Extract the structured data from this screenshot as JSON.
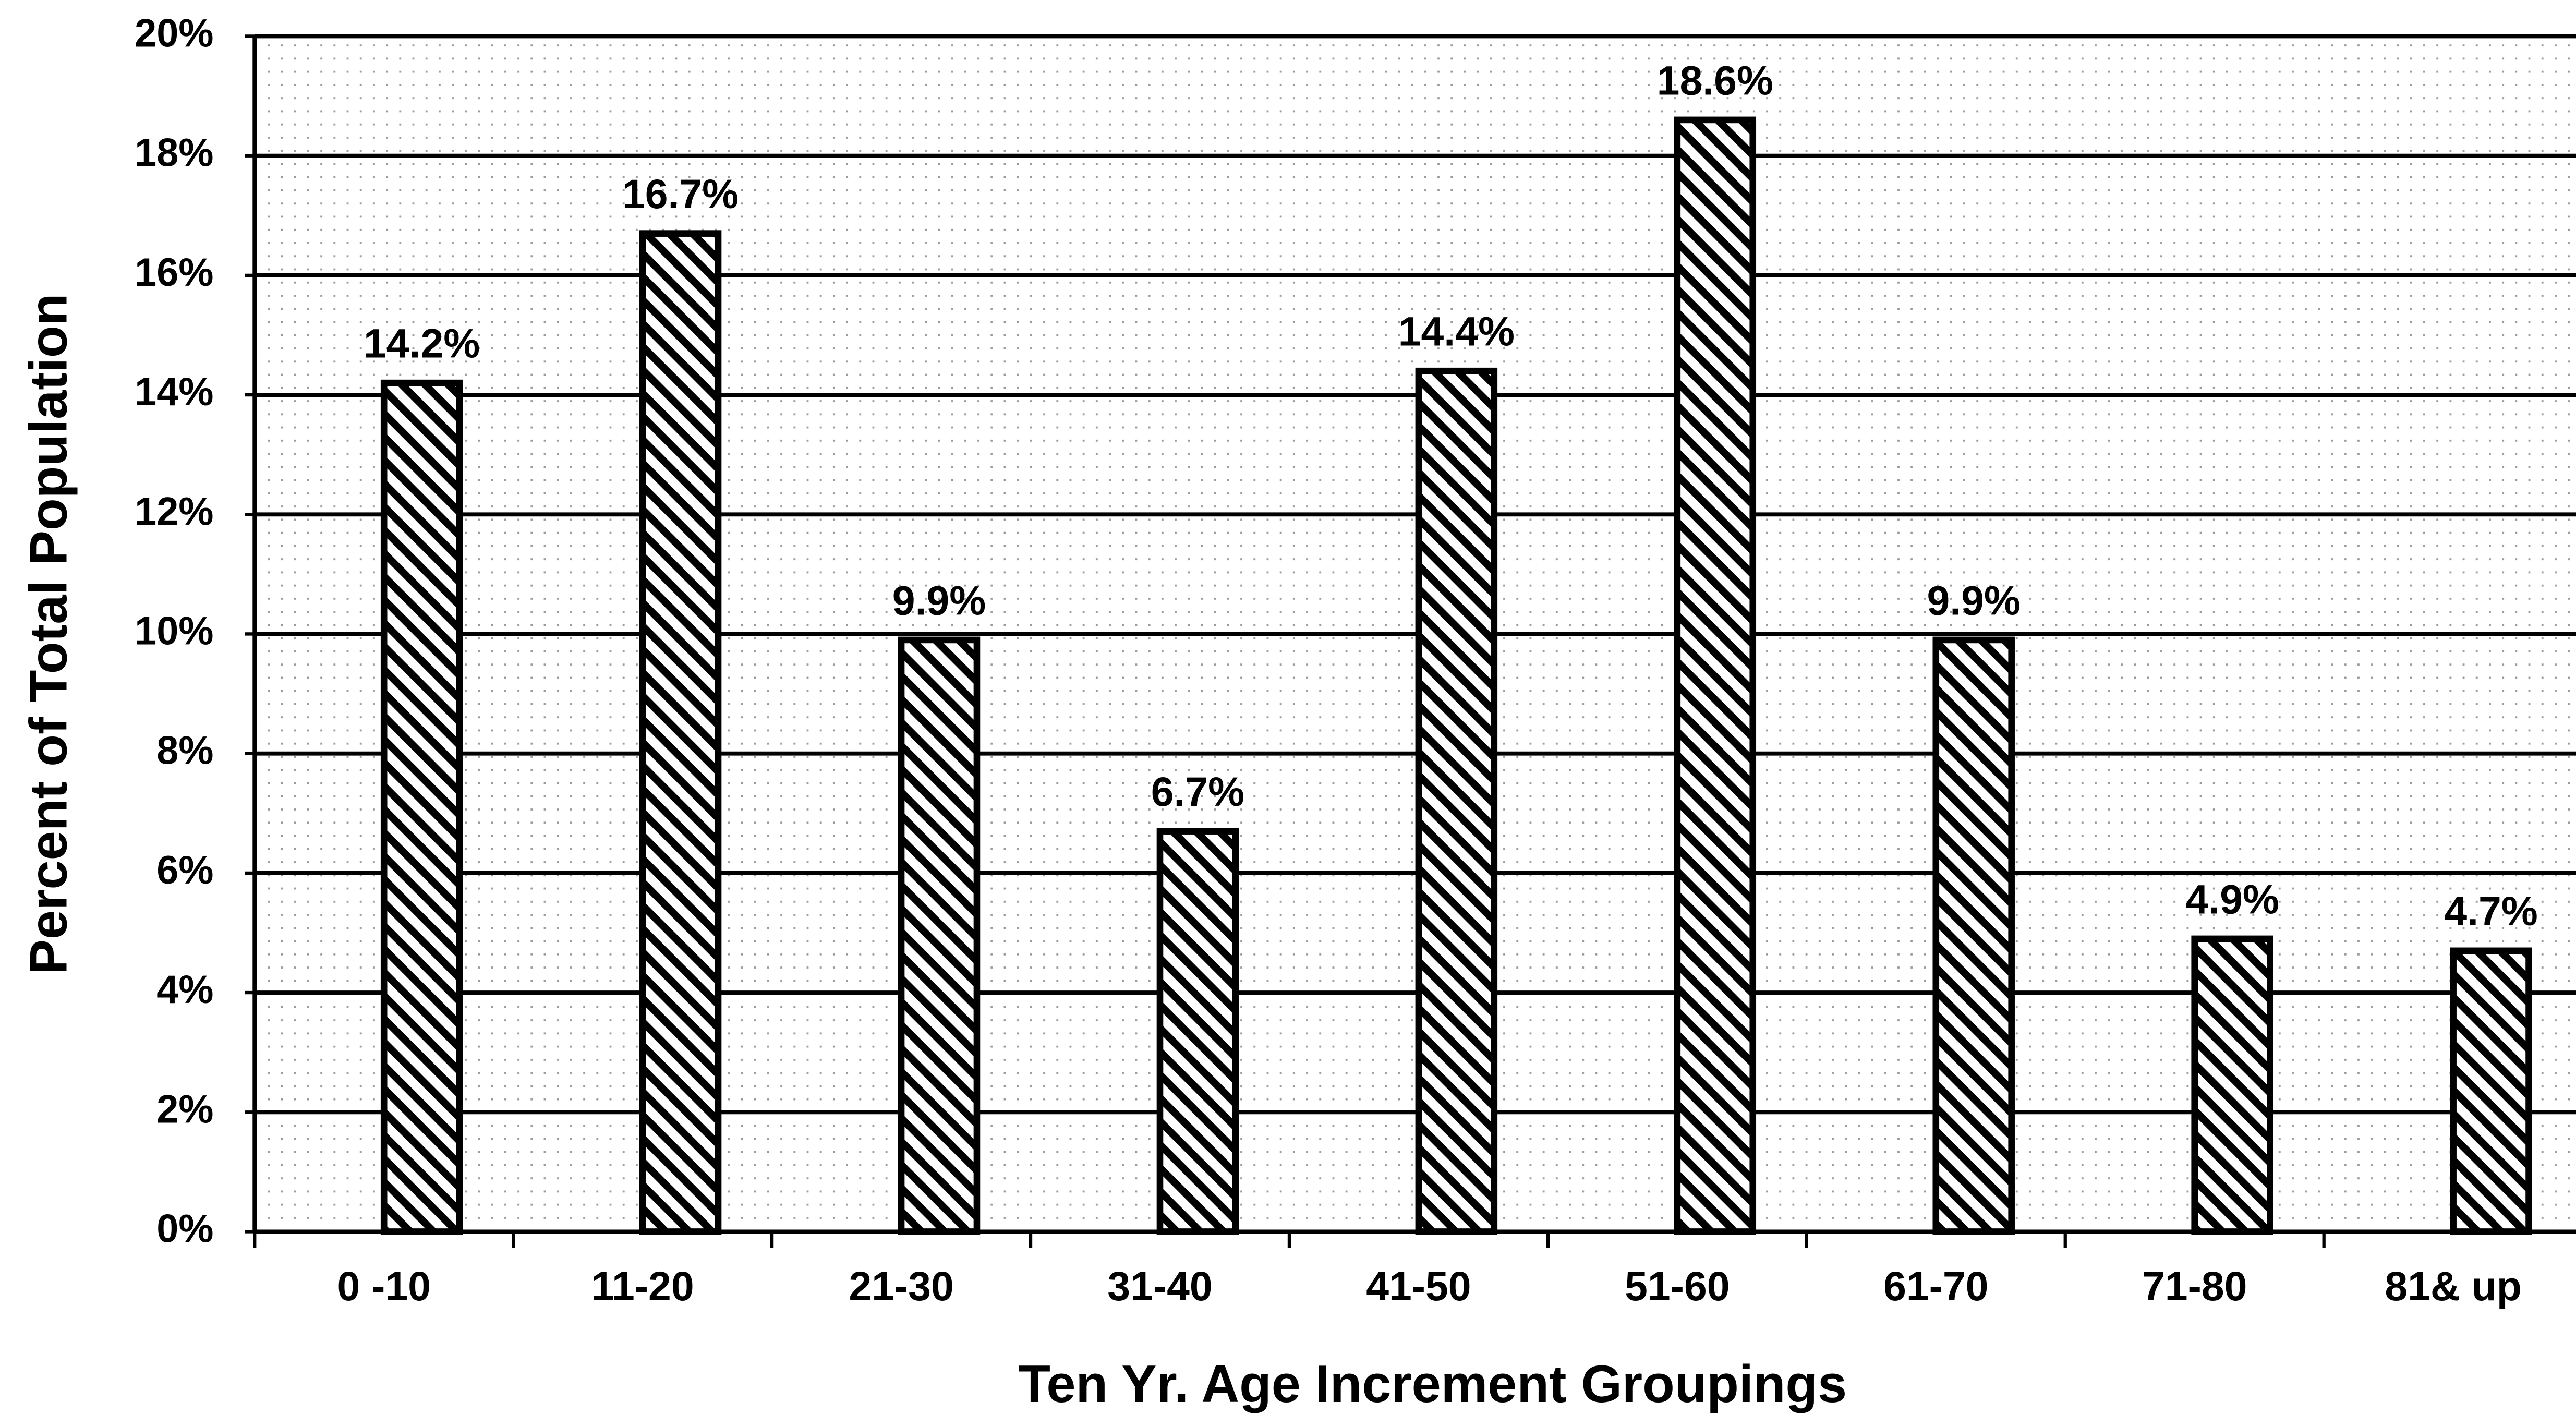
{
  "chart_data": {
    "type": "bar",
    "x_label": "Ten Yr. Age Increment Groupings",
    "y_label": "Percent of Total Population",
    "categories": [
      "0 -10",
      "11-20",
      "21-30",
      "31-40",
      "41-50",
      "51-60",
      "61-70",
      "71-80",
      "81& up"
    ],
    "values": [
      14.2,
      16.7,
      9.9,
      6.7,
      14.4,
      18.6,
      9.9,
      4.9,
      4.7
    ],
    "value_labels": [
      "14.2%",
      "16.7%",
      "9.9%",
      "6.7%",
      "14.4%",
      "18.6%",
      "9.9%",
      "4.9%",
      "4.7%"
    ],
    "color": "#000000",
    "ylim": [
      0,
      20
    ],
    "yticks": [
      {
        "value": 0,
        "label": "0%"
      },
      {
        "value": 2,
        "label": "2%"
      },
      {
        "value": 4,
        "label": "4%"
      },
      {
        "value": 6,
        "label": "6%"
      },
      {
        "value": 8,
        "label": "8%"
      },
      {
        "value": 10,
        "label": "10%"
      },
      {
        "value": 12,
        "label": "12%"
      },
      {
        "value": 14,
        "label": "14%"
      },
      {
        "value": 16,
        "label": "16%"
      },
      {
        "value": 18,
        "label": "18%"
      },
      {
        "value": 20,
        "label": "20%"
      }
    ],
    "grid": true
  }
}
